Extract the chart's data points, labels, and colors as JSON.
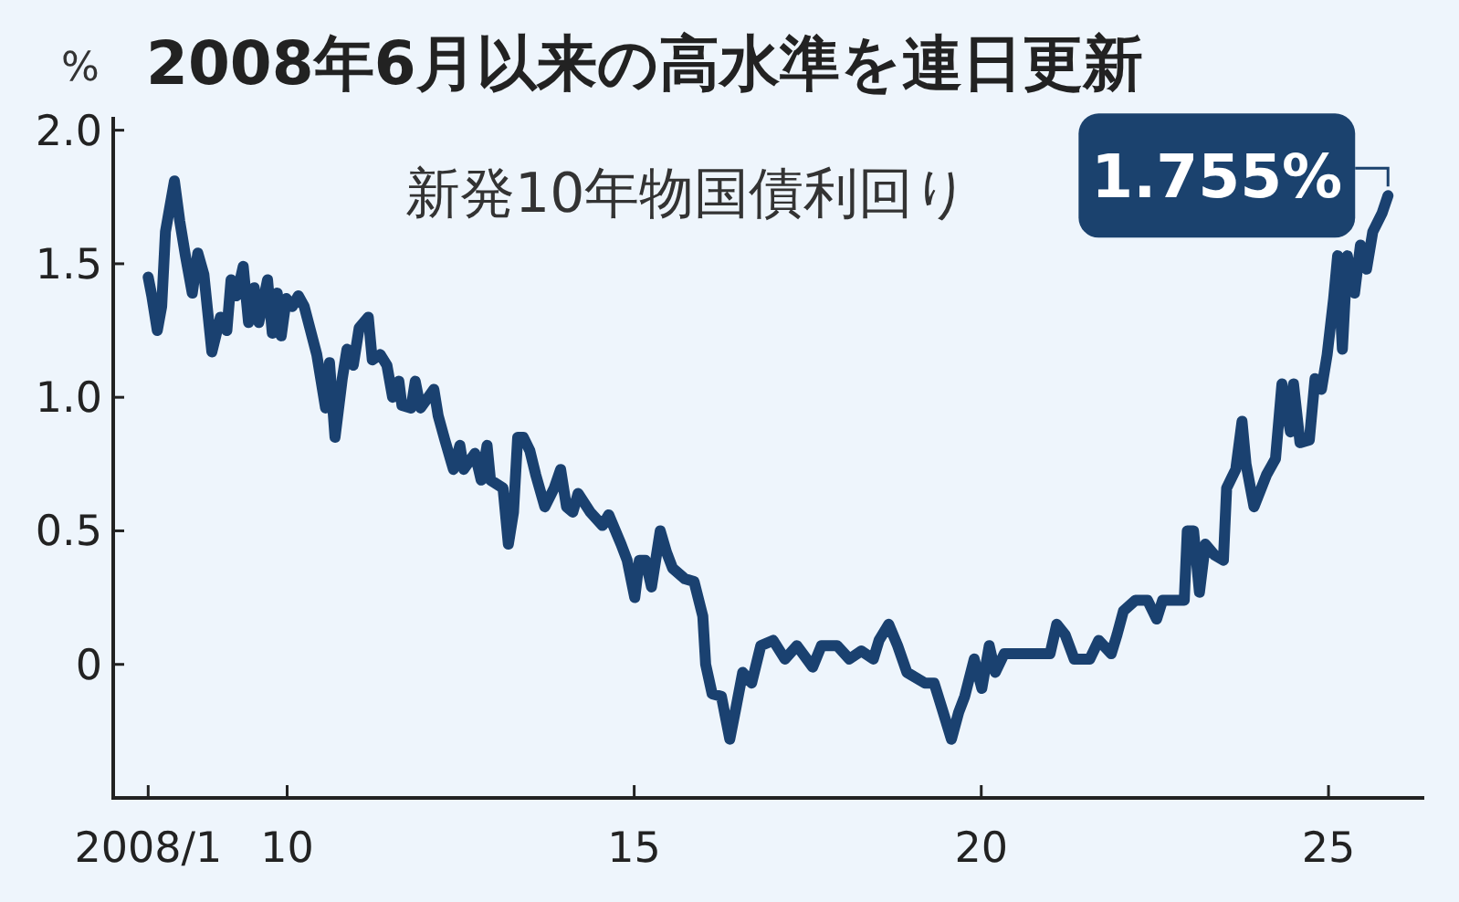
{
  "chart_data": {
    "type": "line",
    "title": "2008年6月以来の高水準を連日更新",
    "subtitle": "新発10年物国債利回り",
    "ylabel": "%",
    "x": [
      "2008-01-01",
      "2008-01-20",
      "2008-02-18",
      "2008-03-12",
      "2008-04-01",
      "2008-05-18",
      "2008-06-15",
      "2008-07-15",
      "2008-08-20",
      "2008-09-18",
      "2008-10-20",
      "2008-12-01",
      "2009-01-15",
      "2009-02-18",
      "2009-03-12",
      "2009-04-10",
      "2009-05-15",
      "2009-06-12",
      "2009-07-12",
      "2009-08-05",
      "2009-09-20",
      "2009-10-15",
      "2009-11-10",
      "2009-12-01",
      "2009-12-28",
      "2010-01-28",
      "2010-03-01",
      "2010-04-01",
      "2010-05-04",
      "2010-06-06",
      "2010-07-22",
      "2010-08-12",
      "2010-09-10",
      "2010-10-18",
      "2010-11-12",
      "2010-12-15",
      "2011-01-15",
      "2011-03-04",
      "2011-03-25",
      "2011-05-06",
      "2011-06-10",
      "2011-07-10",
      "2011-08-12",
      "2011-08-28",
      "2011-10-15",
      "2011-11-06",
      "2011-12-04",
      "2012-02-12",
      "2012-03-06",
      "2012-04-10",
      "2012-05-25",
      "2012-06-28",
      "2012-07-18",
      "2012-09-15",
      "2012-10-18",
      "2012-11-18",
      "2012-12-06",
      "2013-02-10",
      "2013-03-10",
      "2013-04-06",
      "2013-04-28",
      "2013-05-28",
      "2013-07-01",
      "2013-08-01",
      "2013-09-18",
      "2013-11-06",
      "2013-12-10",
      "2014-01-10",
      "2014-02-12",
      "2014-03-12",
      "2014-05-15",
      "2014-07-18",
      "2014-08-20",
      "2014-10-24",
      "2014-11-25",
      "2015-01-04",
      "2015-01-28",
      "2015-03-01",
      "2015-04-02",
      "2015-05-18",
      "2015-06-20",
      "2015-07-22",
      "2015-09-25",
      "2015-11-12",
      "2015-12-28",
      "2016-01-12",
      "2016-02-15",
      "2016-04-04",
      "2016-05-18",
      "2016-06-20",
      "2016-07-25",
      "2016-09-10",
      "2016-10-28",
      "2017-01-01",
      "2017-03-04",
      "2017-05-06",
      "2017-07-28",
      "2017-09-12",
      "2017-12-04",
      "2018-02-06",
      "2018-04-10",
      "2018-06-12",
      "2018-07-12",
      "2018-09-01",
      "2018-10-18",
      "2018-12-06",
      "2019-03-10",
      "2019-04-28",
      "2019-06-15",
      "2019-07-28",
      "2019-09-04",
      "2019-10-06",
      "2019-11-25",
      "2020-01-04",
      "2020-02-12",
      "2020-03-15",
      "2020-05-01",
      "2020-12-28",
      "2021-02-01",
      "2021-03-18",
      "2021-05-04",
      "2021-07-25",
      "2021-09-10",
      "2021-11-15",
      "2021-12-15",
      "2022-01-18",
      "2022-03-22",
      "2022-05-25",
      "2022-07-12",
      "2022-08-12",
      "2022-12-04",
      "2022-12-20",
      "2023-01-22",
      "2023-02-22",
      "2023-03-25",
      "2023-05-12",
      "2023-06-28",
      "2023-07-15",
      "2023-09-01",
      "2023-10-04",
      "2023-10-25",
      "2023-12-06",
      "2024-02-10",
      "2024-03-28",
      "2024-05-01",
      "2024-06-15",
      "2024-07-01",
      "2024-08-04",
      "2024-09-22",
      "2024-10-22",
      "2024-11-25",
      "2024-12-25",
      "2025-01-28",
      "2025-02-18",
      "2025-03-15",
      "2025-04-10",
      "2025-05-18",
      "2025-06-18",
      "2025-07-20",
      "2025-08-22",
      "2025-10-10",
      "2025-11-10"
    ],
    "series": [
      {
        "color": "#1a4170",
        "values": [
          1.45,
          1.38,
          1.25,
          1.34,
          1.62,
          1.81,
          1.66,
          1.53,
          1.39,
          1.54,
          1.46,
          1.17,
          1.3,
          1.25,
          1.44,
          1.38,
          1.49,
          1.28,
          1.41,
          1.28,
          1.44,
          1.24,
          1.39,
          1.23,
          1.37,
          1.34,
          1.38,
          1.34,
          1.25,
          1.16,
          0.96,
          1.13,
          0.85,
          1.07,
          1.18,
          1.12,
          1.26,
          1.3,
          1.14,
          1.16,
          1.12,
          1.0,
          1.06,
          0.97,
          0.96,
          1.06,
          0.96,
          1.03,
          0.93,
          0.84,
          0.73,
          0.82,
          0.73,
          0.79,
          0.69,
          0.82,
          0.69,
          0.66,
          0.45,
          0.57,
          0.85,
          0.85,
          0.8,
          0.71,
          0.59,
          0.66,
          0.73,
          0.59,
          0.57,
          0.64,
          0.57,
          0.52,
          0.56,
          0.45,
          0.39,
          0.25,
          0.39,
          0.39,
          0.29,
          0.5,
          0.42,
          0.36,
          0.32,
          0.31,
          0.18,
          0.0,
          -0.11,
          -0.12,
          -0.28,
          -0.16,
          -0.03,
          -0.07,
          0.07,
          0.09,
          0.02,
          0.07,
          -0.01,
          0.07,
          0.07,
          0.02,
          0.05,
          0.02,
          0.09,
          0.15,
          0.07,
          -0.03,
          -0.07,
          -0.07,
          -0.18,
          -0.28,
          -0.18,
          -0.12,
          0.02,
          -0.09,
          0.07,
          -0.03,
          0.04,
          0.04,
          0.15,
          0.11,
          0.02,
          0.02,
          0.09,
          0.04,
          0.11,
          0.2,
          0.24,
          0.24,
          0.17,
          0.24,
          0.24,
          0.5,
          0.5,
          0.27,
          0.45,
          0.41,
          0.39,
          0.66,
          0.73,
          0.91,
          0.75,
          0.59,
          0.71,
          0.77,
          1.05,
          0.87,
          1.05,
          0.83,
          0.84,
          1.07,
          1.03,
          1.16,
          1.37,
          1.53,
          1.18,
          1.53,
          1.39,
          1.57,
          1.48,
          1.62,
          1.69,
          1.755
        ]
      }
    ],
    "annotations": [
      {
        "text": "1.755%",
        "x": "2025-11-10",
        "y": 1.755
      }
    ],
    "xlim": [
      "2007-07-01",
      "2026-05-20"
    ],
    "ylim": [
      -0.5,
      2.05
    ],
    "xticks": [
      {
        "value": "2008-01",
        "label": "2008/1"
      },
      {
        "value": "2010-01",
        "label": "10"
      },
      {
        "value": "2015-01",
        "label": "15"
      },
      {
        "value": "2020-01",
        "label": "20"
      },
      {
        "value": "2025-01",
        "label": "25"
      }
    ],
    "yticks": [
      0,
      0.5,
      {
        "value": 1,
        "label": "1.0"
      },
      1.5,
      {
        "value": 2,
        "label": "2.0"
      }
    ]
  }
}
